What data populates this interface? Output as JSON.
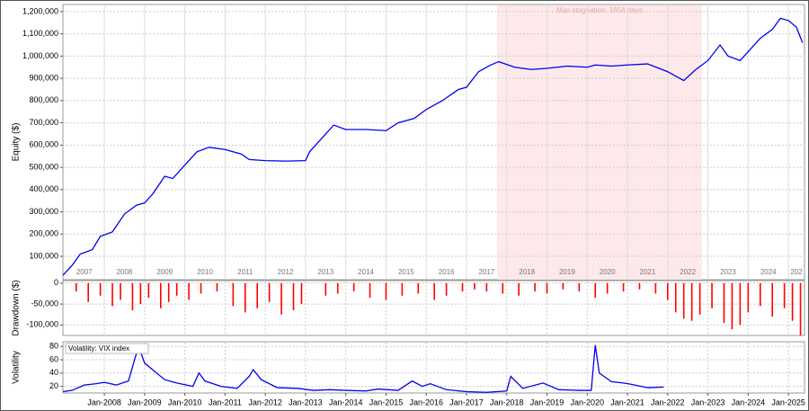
{
  "chart_data": [
    {
      "type": "line",
      "y_label": "Equity ($)",
      "color": "#0000ee",
      "xlim": [
        2006.97,
        2025.4
      ],
      "ylim": [
        -5000,
        1232000
      ],
      "yticks": [
        {
          "value": 100000,
          "label": "100,000"
        },
        {
          "value": 200000,
          "label": "200,000"
        },
        {
          "value": 300000,
          "label": "300,000"
        },
        {
          "value": 400000,
          "label": "400,000"
        },
        {
          "value": 500000,
          "label": "500,000"
        },
        {
          "value": 600000,
          "label": "600,000"
        },
        {
          "value": 700000,
          "label": "700,000"
        },
        {
          "value": 800000,
          "label": "800,000"
        },
        {
          "value": 900000,
          "label": "900,000"
        },
        {
          "value": 1000000,
          "label": "1,000,000"
        },
        {
          "value": 1100000,
          "label": "1,100,000"
        },
        {
          "value": 1200000,
          "label": "1,200,000"
        }
      ],
      "year_labels": [
        {
          "value": 2007.5,
          "label": "2007"
        },
        {
          "value": 2008.5,
          "label": "2008"
        },
        {
          "value": 2009.5,
          "label": "2009"
        },
        {
          "value": 2010.5,
          "label": "2010"
        },
        {
          "value": 2011.5,
          "label": "2011"
        },
        {
          "value": 2012.5,
          "label": "2012"
        },
        {
          "value": 2013.5,
          "label": "2013"
        },
        {
          "value": 2014.5,
          "label": "2014"
        },
        {
          "value": 2015.5,
          "label": "2015"
        },
        {
          "value": 2016.5,
          "label": "2016"
        },
        {
          "value": 2017.5,
          "label": "2017"
        },
        {
          "value": 2018.5,
          "label": "2018"
        },
        {
          "value": 2019.5,
          "label": "2019"
        },
        {
          "value": 2020.5,
          "label": "2020"
        },
        {
          "value": 2021.5,
          "label": "2021"
        },
        {
          "value": 2022.5,
          "label": "2022"
        },
        {
          "value": 2023.5,
          "label": "2023"
        },
        {
          "value": 2024.5,
          "label": "2024"
        },
        {
          "value": 2025.2,
          "label": "202"
        }
      ],
      "shaded_region": {
        "x": [
          2017.76,
          2022.85
        ],
        "label": "Max stagnation: 1654 days",
        "color": "#fde9e9"
      },
      "x": [
        2006.97,
        2007.2,
        2007.4,
        2007.7,
        2007.9,
        2008.2,
        2008.5,
        2008.8,
        2009.0,
        2009.2,
        2009.5,
        2009.7,
        2010.0,
        2010.3,
        2010.6,
        2011.0,
        2011.4,
        2011.6,
        2012.0,
        2012.5,
        2013.0,
        2013.1,
        2013.4,
        2013.7,
        2014.0,
        2014.5,
        2015.0,
        2015.3,
        2015.7,
        2016.0,
        2016.4,
        2016.8,
        2017.0,
        2017.3,
        2017.6,
        2017.8,
        2018.2,
        2018.6,
        2019.0,
        2019.5,
        2020.0,
        2020.2,
        2020.6,
        2021.0,
        2021.5,
        2022.0,
        2022.4,
        2022.7,
        2023.0,
        2023.3,
        2023.5,
        2023.8,
        2024.0,
        2024.3,
        2024.6,
        2024.8,
        2025.0,
        2025.2,
        2025.35
      ],
      "values": [
        15000,
        60000,
        110000,
        130000,
        190000,
        210000,
        290000,
        330000,
        340000,
        380000,
        460000,
        450000,
        510000,
        570000,
        590000,
        580000,
        560000,
        535000,
        530000,
        528000,
        530000,
        570000,
        630000,
        690000,
        670000,
        670000,
        665000,
        700000,
        720000,
        760000,
        800000,
        850000,
        860000,
        930000,
        960000,
        975000,
        950000,
        940000,
        945000,
        955000,
        950000,
        960000,
        955000,
        960000,
        965000,
        930000,
        890000,
        940000,
        980000,
        1050000,
        1000000,
        980000,
        1020000,
        1080000,
        1120000,
        1170000,
        1160000,
        1130000,
        1060000
      ]
    },
    {
      "type": "bar",
      "y_label": "Drawdown ($)",
      "color": "#ff0000",
      "xlim": [
        2006.97,
        2025.4
      ],
      "ylim": [
        -125000,
        6000
      ],
      "yticks": [
        {
          "value": -100000,
          "label": "-100,000"
        },
        {
          "value": -50000,
          "label": "-50,000"
        },
        0
      ],
      "x": [
        2007.3,
        2007.6,
        2007.9,
        2008.2,
        2008.4,
        2008.7,
        2008.9,
        2009.1,
        2009.4,
        2009.6,
        2009.8,
        2010.1,
        2010.4,
        2010.8,
        2011.2,
        2011.5,
        2011.8,
        2012.1,
        2012.4,
        2012.7,
        2012.9,
        2013.5,
        2013.8,
        2014.2,
        2014.6,
        2015.0,
        2015.4,
        2015.8,
        2016.2,
        2016.5,
        2016.9,
        2017.2,
        2017.5,
        2017.9,
        2018.3,
        2018.7,
        2019.0,
        2019.4,
        2019.8,
        2020.2,
        2020.5,
        2020.9,
        2021.3,
        2021.7,
        2022.0,
        2022.2,
        2022.4,
        2022.6,
        2022.8,
        2023.1,
        2023.4,
        2023.6,
        2023.8,
        2024.0,
        2024.3,
        2024.6,
        2024.9,
        2025.1,
        2025.3
      ],
      "values": [
        -20000,
        -45000,
        -30000,
        -55000,
        -40000,
        -65000,
        -50000,
        -35000,
        -60000,
        -45000,
        -30000,
        -40000,
        -25000,
        -20000,
        -55000,
        -70000,
        -60000,
        -45000,
        -75000,
        -65000,
        -50000,
        -30000,
        -25000,
        -20000,
        -35000,
        -40000,
        -30000,
        -25000,
        -40000,
        -30000,
        -20000,
        -15000,
        -20000,
        -25000,
        -30000,
        -20000,
        -25000,
        -15000,
        -20000,
        -35000,
        -25000,
        -20000,
        -15000,
        -25000,
        -40000,
        -70000,
        -85000,
        -90000,
        -75000,
        -60000,
        -95000,
        -110000,
        -100000,
        -70000,
        -55000,
        -80000,
        -60000,
        -90000,
        -125000
      ]
    },
    {
      "type": "line",
      "y_label": "Volatility",
      "xlim": [
        2006.97,
        2025.4
      ],
      "ylim": [
        10,
        87
      ],
      "yticks": [
        20,
        40,
        60,
        80
      ],
      "xticks": [
        {
          "value": 2008,
          "label": "Jan-2008"
        },
        {
          "value": 2009,
          "label": "Jan-2009"
        },
        {
          "value": 2010,
          "label": "Jan-2010"
        },
        {
          "value": 2011,
          "label": "Jan-2011"
        },
        {
          "value": 2012,
          "label": "Jan-2012"
        },
        {
          "value": 2013,
          "label": "Jan-2013"
        },
        {
          "value": 2014,
          "label": "Jan-2014"
        },
        {
          "value": 2015,
          "label": "Jan-2015"
        },
        {
          "value": 2016,
          "label": "Jan-2016"
        },
        {
          "value": 2017,
          "label": "Jan-2017"
        },
        {
          "value": 2018,
          "label": "Jan-2018"
        },
        {
          "value": 2019,
          "label": "Jan-2019"
        },
        {
          "value": 2020,
          "label": "Jan-2020"
        },
        {
          "value": 2021,
          "label": "Jan-2021"
        },
        {
          "value": 2022,
          "label": "Jan-2022"
        },
        {
          "value": 2023,
          "label": "Jan-2023"
        },
        {
          "value": 2024,
          "label": "Jan-2024"
        },
        {
          "value": 2025,
          "label": "Jan-2025"
        }
      ],
      "x": [
        2006.97,
        2007.2,
        2007.5,
        2007.8,
        2008.0,
        2008.3,
        2008.6,
        2008.75,
        2008.85,
        2009.0,
        2009.2,
        2009.5,
        2009.8,
        2010.2,
        2010.35,
        2010.5,
        2010.9,
        2011.3,
        2011.6,
        2011.7,
        2011.9,
        2012.3,
        2012.8,
        2013.2,
        2013.6,
        2014.0,
        2014.5,
        2014.8,
        2015.3,
        2015.65,
        2015.9,
        2016.1,
        2016.5,
        2017.0,
        2017.5,
        2018.0,
        2018.1,
        2018.4,
        2018.9,
        2019.3,
        2019.8,
        2020.1,
        2020.2,
        2020.3,
        2020.6,
        2020.9,
        2021.1,
        2021.5,
        2021.9
      ],
      "series": [
        {
          "name": "Volatility: VIX index",
          "color": "#0000ee",
          "values": [
            12,
            14,
            22,
            24,
            26,
            22,
            28,
            60,
            80,
            55,
            45,
            30,
            25,
            20,
            40,
            28,
            20,
            17,
            35,
            45,
            30,
            18,
            17,
            14,
            15,
            14,
            13,
            16,
            14,
            28,
            20,
            24,
            15,
            12,
            11,
            13,
            35,
            17,
            25,
            15,
            14,
            14,
            82,
            40,
            27,
            25,
            23,
            18,
            19
          ]
        }
      ]
    }
  ]
}
